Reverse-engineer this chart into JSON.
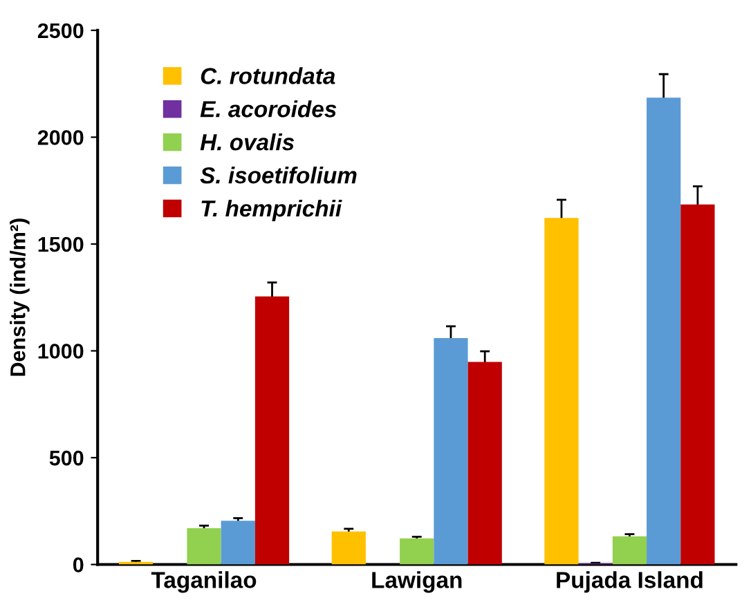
{
  "chart_data": {
    "type": "bar",
    "ylabel": "Density (ind/m²)",
    "categories": [
      "Taganilao",
      "Lawigan",
      "Pujada Island"
    ],
    "series": [
      {
        "name": "C. rotundata",
        "color": "#ffc000",
        "values": [
          12,
          155,
          1622
        ],
        "errors": [
          5,
          12,
          85
        ]
      },
      {
        "name": "E. acoroides",
        "color": "#7030a0",
        "values": [
          0,
          0,
          5
        ],
        "errors": [
          null,
          null,
          3
        ]
      },
      {
        "name": "H. ovalis",
        "color": "#92d050",
        "values": [
          170,
          122,
          132
        ],
        "errors": [
          12,
          8,
          10
        ]
      },
      {
        "name": "S. isoetifolium",
        "color": "#5b9bd5",
        "values": [
          205,
          1060,
          2185
        ],
        "errors": [
          12,
          55,
          110
        ]
      },
      {
        "name": "T. hemprichii",
        "color": "#c00000",
        "values": [
          1255,
          948,
          1685
        ],
        "errors": [
          65,
          50,
          85
        ]
      }
    ],
    "ylim": [
      0,
      2500
    ],
    "yticks": [
      0,
      500,
      1000,
      1500,
      2000,
      2500
    ],
    "grid": false,
    "legend": "top left"
  }
}
